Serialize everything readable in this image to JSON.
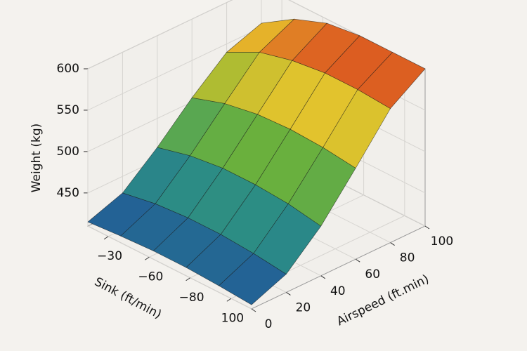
{
  "chart_data": {
    "type": "surface",
    "x_label": "Sink (ft/min)",
    "y_label": "Airspeed (ft.min)",
    "z_label": "Weight (kg)",
    "xticks": [
      "−30",
      "−60",
      "−80",
      "100"
    ],
    "y": [
      0,
      20,
      40,
      60,
      80,
      100
    ],
    "ylim": [
      0,
      100
    ],
    "yticks": [
      0,
      20,
      40,
      60,
      80,
      100
    ],
    "z": [
      [
        415,
        418,
        420,
        420,
        418,
        415
      ],
      [
        430,
        437,
        440,
        440,
        437,
        432
      ],
      [
        465,
        475,
        480,
        480,
        477,
        470
      ],
      [
        505,
        518,
        525,
        527,
        525,
        520
      ],
      [
        540,
        560,
        570,
        575,
        575,
        572
      ],
      [
        555,
        580,
        595,
        600,
        600,
        600
      ]
    ],
    "zlim": [
      410,
      600
    ],
    "zticks": [
      450,
      500,
      550,
      600
    ],
    "colormap": [
      "#1f4f9c",
      "#2b8c86",
      "#6db23a",
      "#e7c42c",
      "#d8381d"
    ],
    "grid": true
  }
}
